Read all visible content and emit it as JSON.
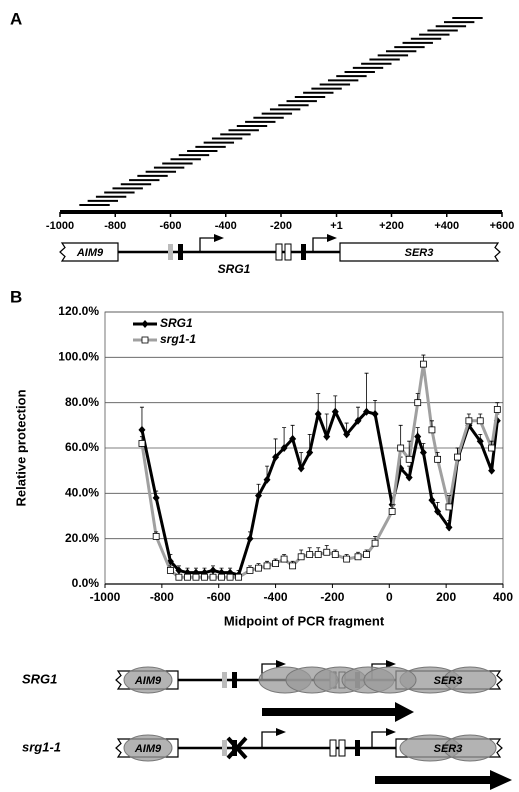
{
  "panel_a": {
    "label": "A",
    "fragments": {
      "starts": [
        -930,
        -900,
        -870,
        -840,
        -810,
        -780,
        -750,
        -720,
        -690,
        -660,
        -630,
        -600,
        -570,
        -540,
        -510,
        -480,
        -450,
        -420,
        -390,
        -360,
        -330,
        -300,
        -270,
        -240,
        -210,
        -180,
        -150,
        -120,
        -90,
        -60,
        -30,
        0,
        30,
        60,
        90,
        120,
        150,
        180,
        210,
        240,
        270,
        300,
        330,
        360,
        390,
        420
      ],
      "ends": [
        -820,
        -790,
        -760,
        -730,
        -700,
        -670,
        -640,
        -610,
        -580,
        -550,
        -520,
        -490,
        -460,
        -430,
        -400,
        -370,
        -340,
        -310,
        -280,
        -250,
        -220,
        -190,
        -160,
        -130,
        -100,
        -70,
        -40,
        -10,
        20,
        50,
        80,
        110,
        140,
        170,
        200,
        230,
        260,
        290,
        320,
        350,
        380,
        410,
        440,
        470,
        500,
        530
      ]
    },
    "xlim": [
      -1000,
      600
    ],
    "xticks": [
      -1000,
      -800,
      -600,
      -400,
      -200,
      {
        "value": 1,
        "label": "+1"
      },
      {
        "value": 200,
        "label": "+200"
      },
      {
        "value": 400,
        "label": "+400"
      },
      {
        "value": 600,
        "label": "+600"
      }
    ],
    "genes": {
      "left": "AIM9",
      "middle": "SRG1",
      "right": "SER3"
    }
  },
  "chart_data": {
    "type": "line",
    "panel_label": "B",
    "x_label": "Midpoint of PCR fragment",
    "y_label": "Relative protection",
    "xlim": [
      -1000,
      400
    ],
    "ylim": [
      0,
      120
    ],
    "xticks": [
      -1000,
      -800,
      -600,
      -400,
      -200,
      0,
      200,
      400
    ],
    "yticks": [
      {
        "value": 0,
        "label": "0.0%"
      },
      {
        "value": 20,
        "label": "20.0%"
      },
      {
        "value": 40,
        "label": "40.0%"
      },
      {
        "value": 60,
        "label": "60.0%"
      },
      {
        "value": 80,
        "label": "80.0%"
      },
      {
        "value": 100,
        "label": "100.0%"
      },
      {
        "value": 120,
        "label": "120.0%"
      }
    ],
    "grid": true,
    "legend": "upper left",
    "x": [
      -870,
      -820,
      -770,
      -740,
      -710,
      -680,
      -650,
      -620,
      -590,
      -560,
      -530,
      -490,
      -460,
      -430,
      -400,
      -370,
      -340,
      -310,
      -280,
      -250,
      -220,
      -190,
      -150,
      -110,
      -80,
      -50,
      10,
      40,
      70,
      100,
      120,
      150,
      170,
      210,
      240,
      280,
      320,
      360,
      380
    ],
    "series": [
      {
        "name": "SRG1",
        "color": "#000000",
        "marker": "diamond",
        "values": [
          68,
          38,
          10,
          6,
          5,
          5,
          5,
          6,
          5,
          5,
          4,
          20,
          39,
          46,
          56,
          60,
          64,
          51,
          58,
          75,
          65,
          76,
          66,
          72,
          76,
          75,
          35,
          51,
          47,
          65,
          58,
          37,
          32,
          25,
          55,
          70,
          63,
          50,
          72
        ],
        "errors": [
          10,
          3,
          3,
          2,
          2,
          2,
          2,
          2,
          2,
          2,
          2,
          3,
          5,
          6,
          8,
          9,
          6,
          7,
          8,
          9,
          10,
          7,
          5,
          6,
          17,
          6,
          3,
          5,
          5,
          4,
          4,
          3,
          4,
          3,
          5,
          3,
          3,
          3,
          3
        ]
      },
      {
        "name": "srg1-1",
        "color": "#a0a0a0",
        "marker": "square",
        "values": [
          62,
          21,
          6,
          3,
          3,
          3,
          3,
          3,
          3,
          3,
          3,
          6,
          7,
          8,
          9,
          11,
          8,
          12,
          13,
          13,
          14,
          13,
          11,
          12,
          13,
          18,
          32,
          60,
          55,
          80,
          97,
          68,
          55,
          34,
          56,
          72,
          72,
          60,
          77
        ],
        "errors": [
          3,
          2,
          2,
          1,
          1,
          1,
          1,
          1,
          1,
          1,
          1,
          2,
          2,
          2,
          2,
          2,
          2,
          3,
          3,
          3,
          3,
          2,
          2,
          2,
          2,
          3,
          3,
          10,
          8,
          4,
          4,
          4,
          3,
          5,
          4,
          3,
          3,
          3,
          3
        ]
      }
    ]
  },
  "panel_b_diagrams": [
    {
      "label": "SRG1",
      "left": "AIM9",
      "right": "SER3"
    },
    {
      "label": "srg1-1",
      "left": "AIM9",
      "right": "SER3"
    }
  ]
}
